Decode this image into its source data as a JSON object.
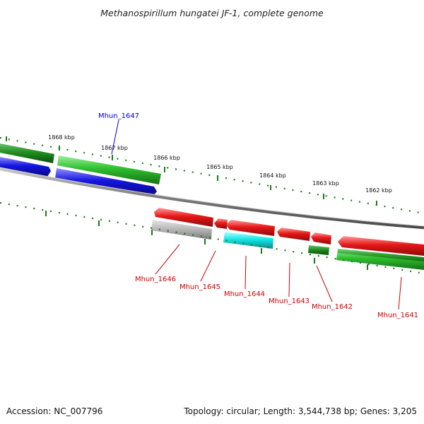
{
  "title": "Methanospirillum hungatei JF-1, complete genome",
  "footer": {
    "accession": "Accession: NC_007796",
    "summary": "Topology: circular; Length: 3,544,738 bp; Genes: 3,205"
  },
  "colors": {
    "backbone": "#808080",
    "tick": "#1a7a1a",
    "forward_gene": "#2fbf2f",
    "reverse_gene": "#e61717",
    "blue_gene": "#1414e0",
    "grey_gene": "#b4b4b4",
    "cyan_gene": "#14e6e6",
    "forward_label": "#0000cc",
    "reverse_label": "#cc0000"
  },
  "scale": {
    "tick_labels": [
      "1868 kbp",
      "1867 kbp",
      "1866 kbp",
      "1865 kbp",
      "1864 kbp",
      "1863 kbp",
      "1862 kbp"
    ]
  },
  "gene_labels": [
    {
      "name": "Mhun_1647",
      "strand": "forward"
    },
    {
      "name": "Mhun_1646",
      "strand": "reverse"
    },
    {
      "name": "Mhun_1645",
      "strand": "reverse"
    },
    {
      "name": "Mhun_1644",
      "strand": "reverse"
    },
    {
      "name": "Mhun_1643",
      "strand": "reverse"
    },
    {
      "name": "Mhun_1642",
      "strand": "reverse"
    },
    {
      "name": "Mhun_1641",
      "strand": "reverse"
    }
  ]
}
